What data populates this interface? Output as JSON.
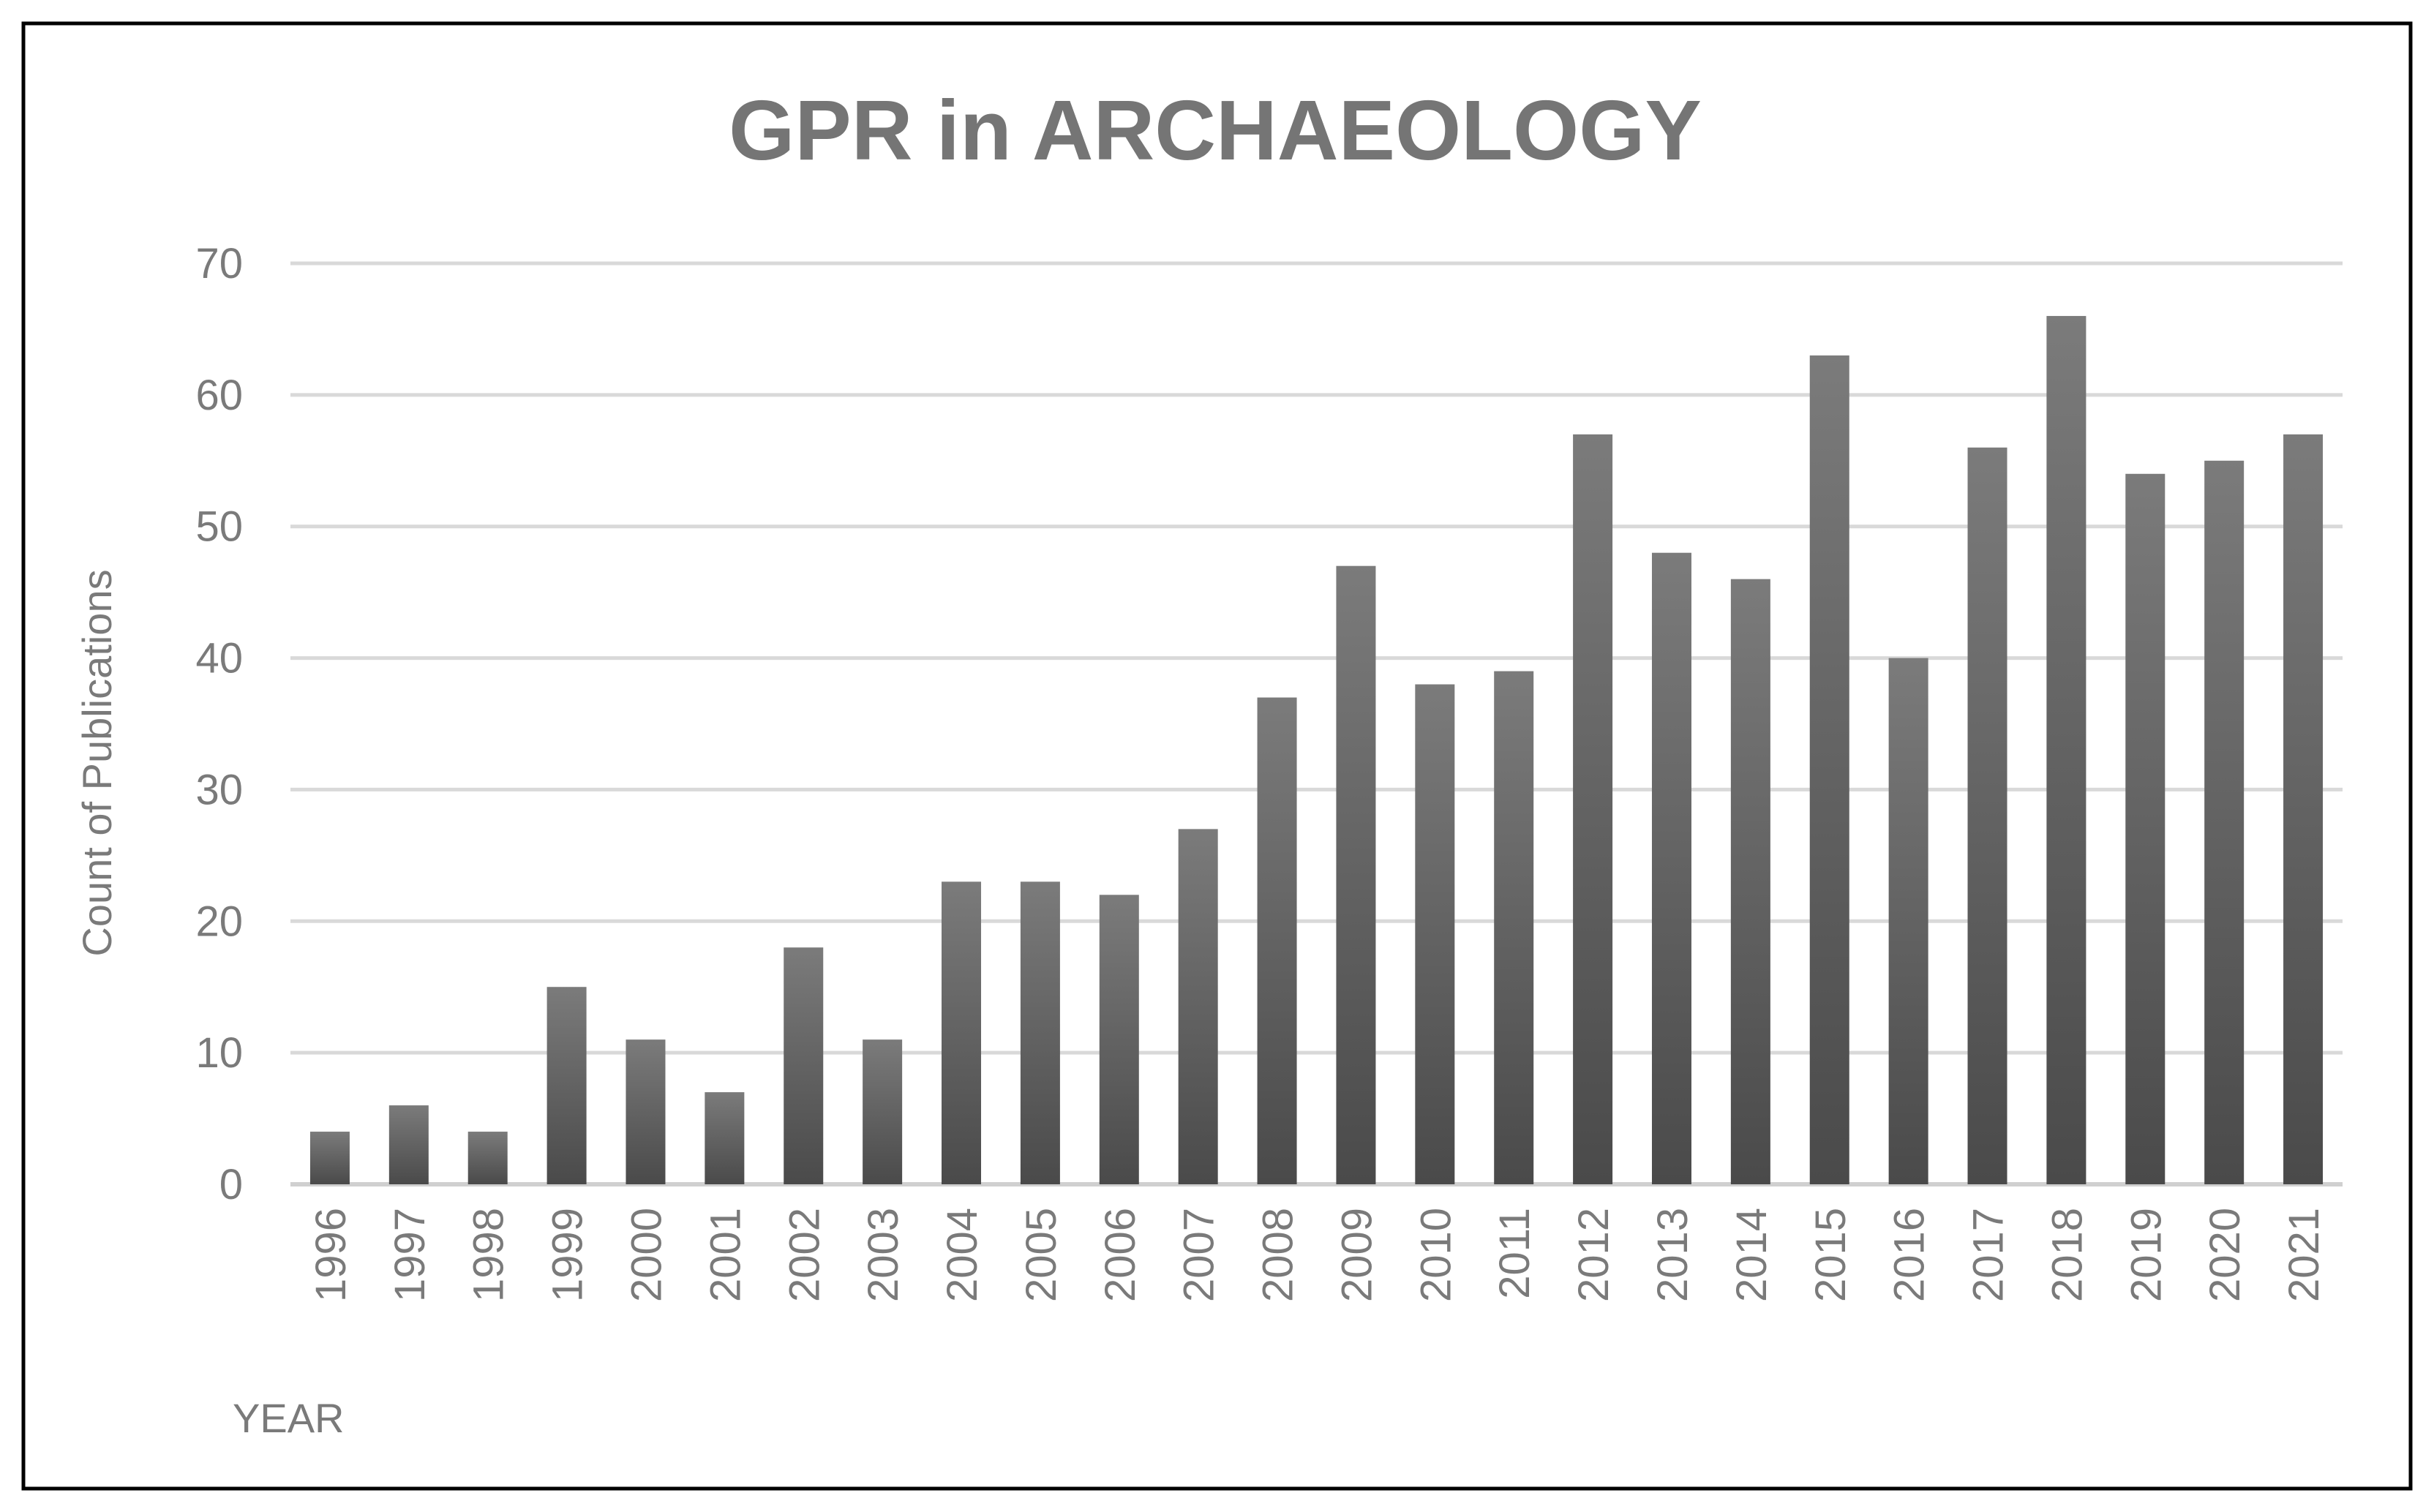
{
  "chart_data": {
    "type": "bar",
    "title": "GPR in ARCHAEOLOGY",
    "xlabel": "YEAR",
    "ylabel": "Count of Publications",
    "categories": [
      "1996",
      "1997",
      "1998",
      "1999",
      "2000",
      "2001",
      "2002",
      "2003",
      "2004",
      "2005",
      "2006",
      "2007",
      "2008",
      "2009",
      "2010",
      "2011",
      "2012",
      "2013",
      "2014",
      "2015",
      "2016",
      "2017",
      "2018",
      "2019",
      "2020",
      "2021"
    ],
    "values": [
      4,
      6,
      4,
      15,
      11,
      7,
      18,
      11,
      23,
      23,
      22,
      27,
      37,
      47,
      38,
      39,
      57,
      48,
      46,
      63,
      40,
      56,
      66,
      54,
      55,
      57
    ],
    "ylim": [
      0,
      70
    ],
    "yticks": [
      0,
      10,
      20,
      30,
      40,
      50,
      60,
      70
    ],
    "grid": true,
    "legend": "none",
    "colors": {
      "bar_top": "#7b7b7b",
      "bar_bottom": "#4a4a4a",
      "text": "#7a7a7a",
      "title": "#757575",
      "grid": "#d9d9d9",
      "frame": "#000000"
    }
  }
}
